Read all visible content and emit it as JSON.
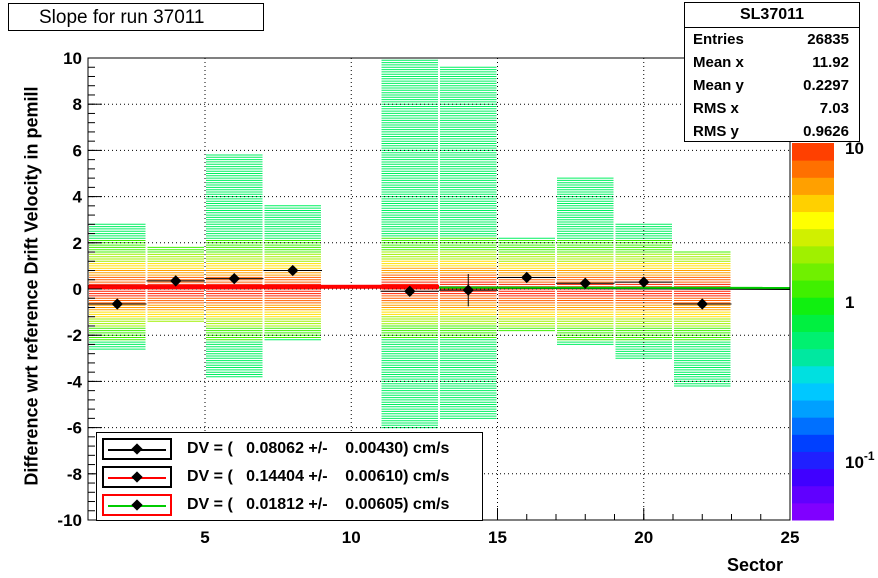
{
  "title": "Slope for run 37011",
  "stats": {
    "name": "SL37011",
    "rows": [
      {
        "label": "Entries",
        "value": "26835"
      },
      {
        "label": "Mean x",
        "value": "11.92"
      },
      {
        "label": "Mean y",
        "value": "0.2297"
      },
      {
        "label": "RMS x",
        "value": "7.03"
      },
      {
        "label": "RMS y",
        "value": "0.9626"
      }
    ]
  },
  "legend": [
    {
      "text": "DV = (   0.08062 +/-    0.00430) cm/s",
      "box_color": "#000000",
      "line_color": "#000000"
    },
    {
      "text": "DV = (   0.14404 +/-    0.00610) cm/s",
      "box_color": "#000000",
      "line_color": "#ff0000"
    },
    {
      "text": "DV = (   0.01812 +/-    0.00605) cm/s",
      "box_color": "#ff0000",
      "line_color": "#00cc00"
    }
  ],
  "chart_data": {
    "type": "heatmap",
    "title": "Slope for run 37011",
    "xlabel": "Sector",
    "ylabel": "Difference wrt reference Drift Velocity in pemill",
    "xlim": [
      1,
      25
    ],
    "ylim": [
      -10,
      10
    ],
    "x_ticks": [
      5,
      10,
      15,
      20,
      25
    ],
    "y_ticks": [
      -10,
      -8,
      -6,
      -4,
      -2,
      0,
      2,
      4,
      6,
      8,
      10
    ],
    "grid": true,
    "color_scale": "log",
    "color_scale_labels": [
      "10",
      "1",
      "10^-1"
    ],
    "bins": [
      {
        "x_range": [
          1,
          3
        ],
        "y_min": -2.6,
        "y_max": 2.8
      },
      {
        "x_range": [
          3,
          5
        ],
        "y_min": -1.4,
        "y_max": 1.8
      },
      {
        "x_range": [
          5,
          7
        ],
        "y_min": -3.8,
        "y_max": 5.8
      },
      {
        "x_range": [
          7,
          9
        ],
        "y_min": -2.2,
        "y_max": 3.6
      },
      {
        "x_range": [
          11,
          13
        ],
        "y_min": -6.0,
        "y_max": 10.0
      },
      {
        "x_range": [
          13,
          15
        ],
        "y_min": -5.6,
        "y_max": 9.6
      },
      {
        "x_range": [
          15,
          17
        ],
        "y_min": -1.8,
        "y_max": 2.2
      },
      {
        "x_range": [
          17,
          19
        ],
        "y_min": -2.4,
        "y_max": 4.8
      },
      {
        "x_range": [
          19,
          21
        ],
        "y_min": -3.0,
        "y_max": 2.8
      },
      {
        "x_range": [
          21,
          23
        ],
        "y_min": -4.2,
        "y_max": 1.6
      }
    ],
    "profile_points": [
      {
        "x": 2,
        "y": -0.65,
        "err": 0.1
      },
      {
        "x": 4,
        "y": 0.35,
        "err": 0.1
      },
      {
        "x": 6,
        "y": 0.45,
        "err": 0.1
      },
      {
        "x": 8,
        "y": 0.8,
        "err": 0.1
      },
      {
        "x": 12,
        "y": -0.1,
        "err": 0.1
      },
      {
        "x": 14,
        "y": -0.05,
        "err": 0.7
      },
      {
        "x": 16,
        "y": 0.5,
        "err": 0.1
      },
      {
        "x": 18,
        "y": 0.25,
        "err": 0.1
      },
      {
        "x": 20,
        "y": 0.3,
        "err": 0.1
      },
      {
        "x": 22,
        "y": -0.65,
        "err": 0.1
      }
    ],
    "fit_lines": [
      {
        "color": "#000000",
        "x": [
          1,
          25
        ],
        "y": [
          0.13,
          0.0
        ]
      },
      {
        "color": "#ff0000",
        "x": [
          1,
          13
        ],
        "y": [
          0.08,
          0.1
        ]
      },
      {
        "color": "#00cc00",
        "x": [
          13,
          25
        ],
        "y": [
          0.06,
          0.05
        ]
      }
    ]
  }
}
